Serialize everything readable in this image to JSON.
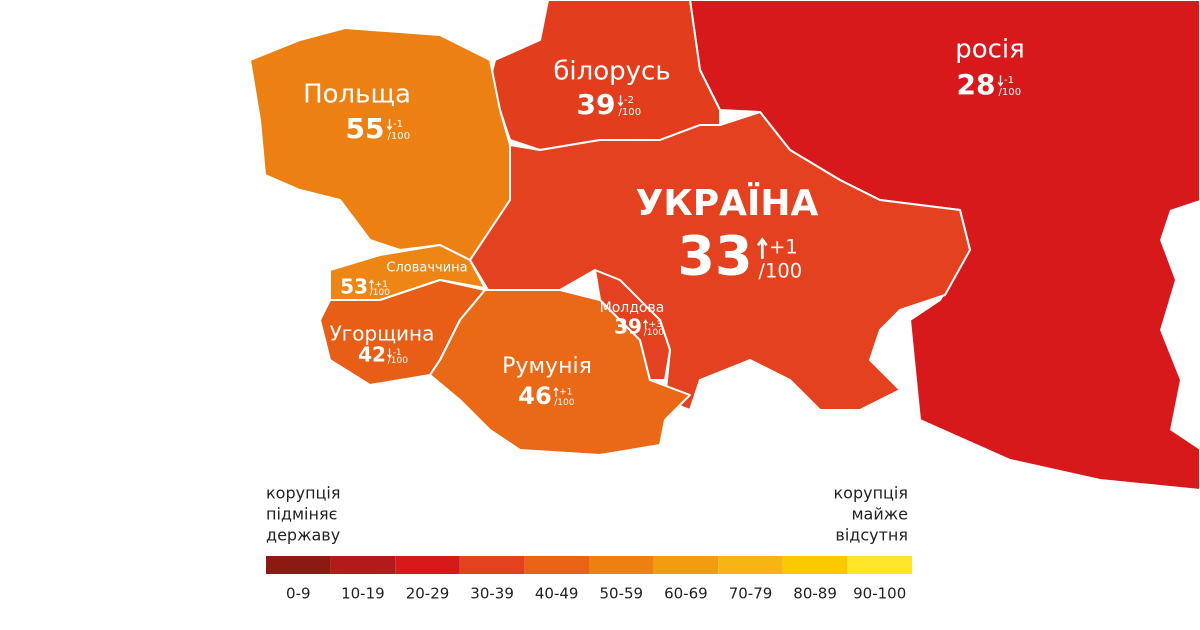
{
  "countries": [
    {
      "name": "Польща",
      "score": 55,
      "change": "-1",
      "color": "#ec8012"
    },
    {
      "name": "білорусь",
      "score": 39,
      "change": "-2",
      "color": "#e23e1e"
    },
    {
      "name": "росія",
      "score": 28,
      "change": "-1",
      "color": "#d7191c"
    },
    {
      "name": "УКРАЇНА",
      "score": 33,
      "change": "+1",
      "color": "#e3411f"
    },
    {
      "name": "Словаччина",
      "score": 53,
      "change": "+1",
      "color": "#ed8615"
    },
    {
      "name": "Угорщина",
      "score": 42,
      "change": "-1",
      "color": "#e85e16"
    },
    {
      "name": "Румунія",
      "score": 46,
      "change": "+1",
      "color": "#e96917"
    },
    {
      "name": "Молдова",
      "score": 39,
      "change": "+3",
      "color": "#e3411f"
    }
  ],
  "max_label": "/100",
  "legend": {
    "left_text": [
      "корупція",
      "підміняє",
      "державу"
    ],
    "right_text": [
      "корупція",
      "майже",
      "відсутня"
    ],
    "bins": [
      {
        "label": "0-9",
        "color": "#8b1a13"
      },
      {
        "label": "10-19",
        "color": "#b31b1b"
      },
      {
        "label": "20-29",
        "color": "#d7191c"
      },
      {
        "label": "30-39",
        "color": "#e3411f"
      },
      {
        "label": "40-49",
        "color": "#e96316"
      },
      {
        "label": "50-59",
        "color": "#ee8012"
      },
      {
        "label": "60-69",
        "color": "#f29c10"
      },
      {
        "label": "70-79",
        "color": "#f7b514"
      },
      {
        "label": "80-89",
        "color": "#fbc900"
      },
      {
        "label": "90-100",
        "color": "#ffe529"
      }
    ]
  }
}
